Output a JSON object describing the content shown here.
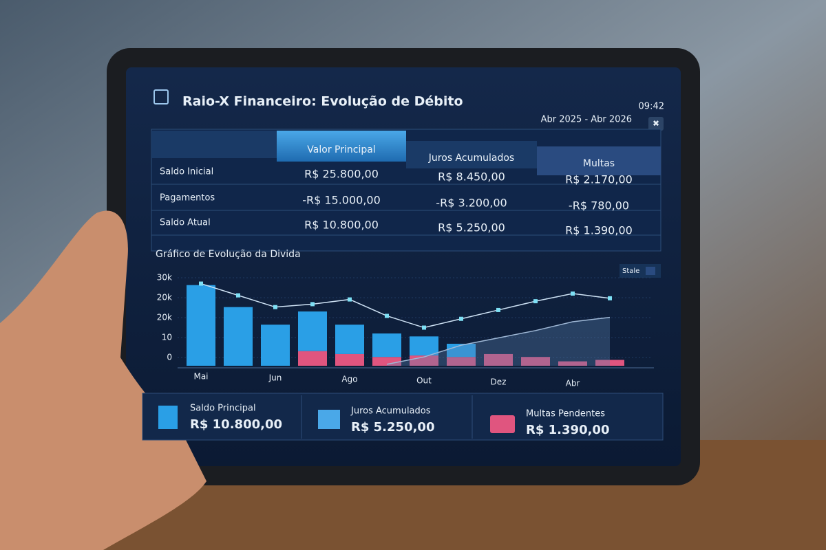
{
  "header": {
    "title": "Raio-X Financeiro: Evolução de Débito",
    "time": "09:42",
    "range": "Abr 2025 - Abr 2026"
  },
  "table": {
    "columns": [
      "Valor Principal",
      "Juros Acumulados",
      "Multas"
    ],
    "rows": [
      [
        "Saldo Inicial",
        "R$ 25.800,00",
        "R$ 8.450,00",
        "R$ 2.170,00"
      ],
      [
        "Pagamentos",
        "-R$ 15.000,00",
        "-R$ 3.200,00",
        "-R$ 780,00"
      ],
      [
        "Saldo Atual",
        "R$ 10.800,00",
        "R$ 5.250,00",
        "R$ 1.390,00"
      ]
    ]
  },
  "chart_data": {
    "type": "bar",
    "title": "Gráfico de Evolução da Divida",
    "legend": "Stale",
    "categories": [
      "Mai",
      null,
      "Jun",
      null,
      "Ago",
      null,
      "Out",
      null,
      "Dez",
      null,
      "Abr",
      null
    ],
    "y_labels": [
      "30k",
      "20k",
      "20k",
      "10",
      "0"
    ],
    "ylim": [
      0,
      30
    ],
    "series": [
      {
        "type": "bar",
        "color": "#e0557f",
        "values": [
          null,
          null,
          null,
          5,
          4,
          3,
          3.5,
          3,
          4,
          3,
          1.5,
          2
        ]
      },
      {
        "type": "bar",
        "color": "#2a9fe6",
        "values": [
          27.5,
          20,
          14,
          13.5,
          10,
          8,
          6.5,
          4.5,
          null,
          null,
          null,
          null
        ]
      },
      {
        "type": "line",
        "color": "#cfe3f5",
        "values": [
          28,
          24,
          20,
          21,
          22.6,
          17,
          13,
          16,
          19,
          22,
          24.6,
          23
        ]
      },
      {
        "type": "area",
        "color": "#5a82b0",
        "values": [
          null,
          null,
          null,
          null,
          null,
          0.5,
          3,
          7,
          9.5,
          12,
          15,
          16.5
        ]
      }
    ]
  },
  "cards": [
    {
      "label": "Saldo Principal",
      "value": "R$ 10.800,00"
    },
    {
      "label": "Juros Acumulados",
      "value": "R$ 5.250,00"
    },
    {
      "label": "Multas Pendentes",
      "value": "R$ 1.390,00"
    }
  ]
}
